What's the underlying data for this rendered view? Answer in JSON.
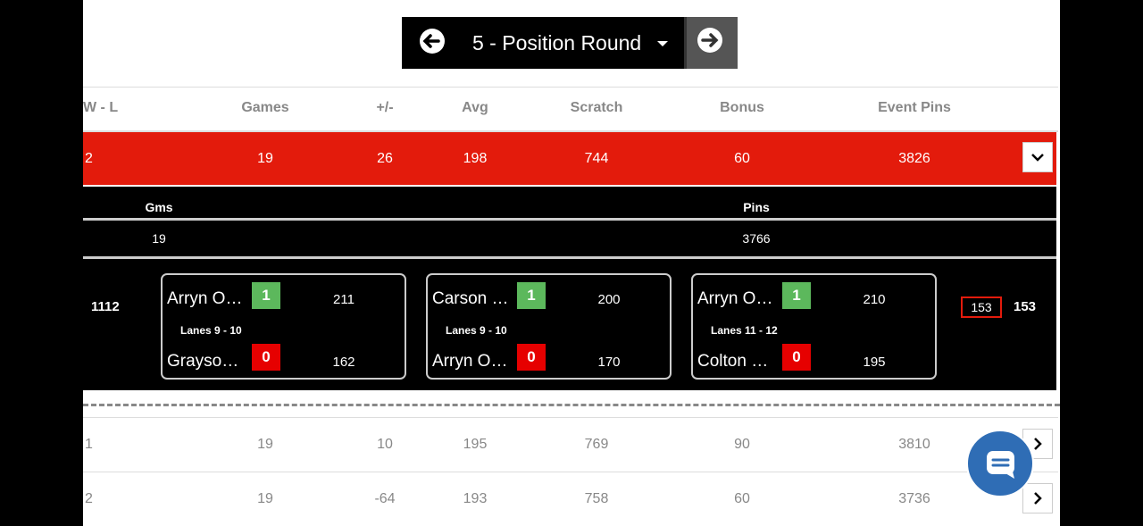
{
  "nav": {
    "round": "5 - Position Round"
  },
  "table": {
    "columns": [
      "W - L",
      "Games",
      "+/-",
      "Avg",
      "Scratch",
      "Bonus",
      "Event Pins"
    ],
    "expanded_row": [
      "2",
      "19",
      "26",
      "198",
      "744",
      "60",
      "3826"
    ],
    "rows": [
      [
        "1",
        "19",
        "10",
        "195",
        "769",
        "90",
        "3810"
      ],
      [
        "2",
        "19",
        "-64",
        "193",
        "758",
        "60",
        "3736"
      ]
    ]
  },
  "detail": {
    "columns": [
      "Gms",
      "Pins"
    ],
    "values": [
      "19",
      "3766"
    ],
    "total": "1112",
    "matches": [
      {
        "lanes": "Lanes 9 - 10",
        "players": [
          {
            "name": "Arryn O…",
            "result": "1",
            "score": "211"
          },
          {
            "name": "Grayso…",
            "result": "0",
            "score": "162"
          }
        ]
      },
      {
        "lanes": "Lanes 9 - 10",
        "players": [
          {
            "name": "Carson …",
            "result": "1",
            "score": "200"
          },
          {
            "name": "Arryn O…",
            "result": "0",
            "score": "170"
          }
        ]
      },
      {
        "lanes": "Lanes 11 - 12",
        "players": [
          {
            "name": "Arryn O…",
            "result": "1",
            "score": "210"
          },
          {
            "name": "Colton …",
            "result": "0",
            "score": "195"
          }
        ]
      }
    ],
    "boxed_score": "153",
    "score": "153"
  }
}
